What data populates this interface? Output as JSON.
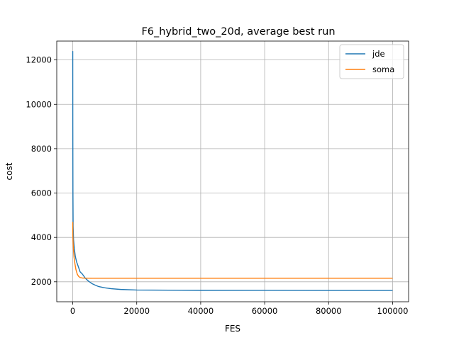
{
  "chart_data": {
    "type": "line",
    "title": "F6_hybrid_two_20d, average best run",
    "xlabel": "FES",
    "ylabel": "cost",
    "xlim": [
      -5000,
      105000
    ],
    "ylim": [
      1100,
      12850
    ],
    "xticks": [
      0,
      20000,
      40000,
      60000,
      80000,
      100000
    ],
    "yticks": [
      2000,
      4000,
      6000,
      8000,
      10000,
      12000
    ],
    "grid": true,
    "legend_position": "top-right",
    "series": [
      {
        "name": "jde",
        "color": "#1f77b4",
        "x": [
          0,
          20,
          60,
          120,
          250,
          500,
          800,
          1200,
          1700,
          2300,
          3000,
          4000,
          5000,
          6000,
          7000,
          8000,
          10000,
          12000,
          15000,
          20000,
          30000,
          40000,
          60000,
          80000,
          100000
        ],
        "y": [
          12400,
          9000,
          6000,
          4500,
          3900,
          3500,
          3150,
          2900,
          2700,
          2450,
          2350,
          2150,
          2020,
          1920,
          1850,
          1790,
          1730,
          1690,
          1655,
          1630,
          1620,
          1615,
          1612,
          1610,
          1610
        ]
      },
      {
        "name": "soma",
        "color": "#ff7f0e",
        "x": [
          0,
          30,
          100,
          200,
          400,
          700,
          1000,
          1400,
          1800,
          2300,
          3000,
          4000,
          6000,
          10000,
          20000,
          40000,
          60000,
          80000,
          100000
        ],
        "y": [
          4700,
          4100,
          3800,
          3500,
          3100,
          2800,
          2550,
          2350,
          2250,
          2190,
          2170,
          2165,
          2160,
          2160,
          2160,
          2160,
          2160,
          2160,
          2160
        ]
      }
    ]
  }
}
